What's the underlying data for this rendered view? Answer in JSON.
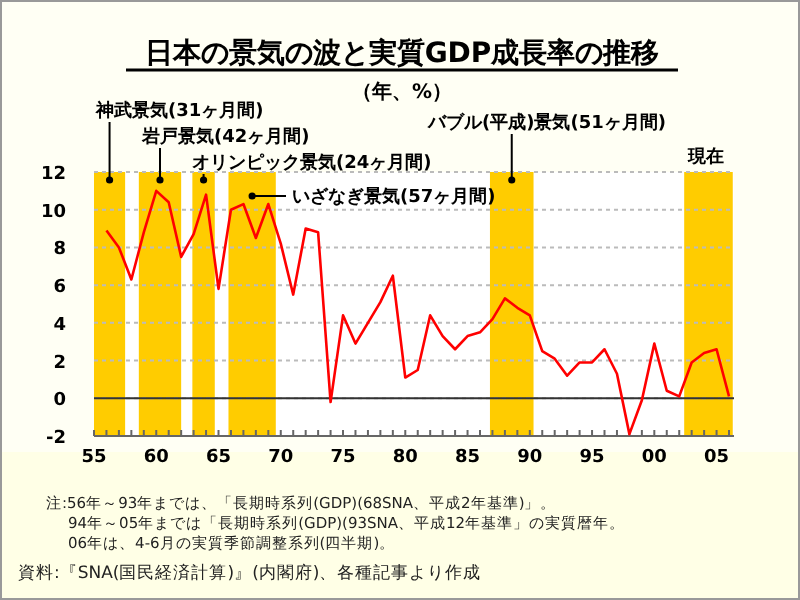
{
  "chart_data": {
    "type": "line",
    "title": "日本の景気の波と実質GDP成長率の推移",
    "subtitle": "（年、%）",
    "x": [
      1956,
      1957,
      1958,
      1959,
      1960,
      1961,
      1962,
      1963,
      1964,
      1965,
      1966,
      1967,
      1968,
      1969,
      1970,
      1971,
      1972,
      1973,
      1974,
      1975,
      1976,
      1977,
      1978,
      1979,
      1980,
      1981,
      1982,
      1983,
      1984,
      1985,
      1986,
      1987,
      1988,
      1989,
      1990,
      1991,
      1992,
      1993,
      1994,
      1995,
      1996,
      1997,
      1998,
      1999,
      2000,
      2001,
      2002,
      2003,
      2004,
      2005,
      2006
    ],
    "series": [
      {
        "color": "#ff0000",
        "values": [
          8.9,
          8.0,
          6.3,
          8.8,
          11.0,
          10.4,
          7.5,
          8.7,
          10.8,
          5.8,
          10.0,
          10.3,
          8.5,
          10.3,
          8.2,
          5.5,
          9.0,
          8.8,
          -0.2,
          4.4,
          2.9,
          4.0,
          5.1,
          6.5,
          1.1,
          1.5,
          4.4,
          3.3,
          2.6,
          3.3,
          3.5,
          4.2,
          5.3,
          4.8,
          4.4,
          2.5,
          2.1,
          1.2,
          1.9,
          1.9,
          2.6,
          1.3,
          -1.9,
          -0.1,
          2.9,
          0.4,
          0.1,
          1.9,
          2.4,
          2.6,
          0.1
        ]
      }
    ],
    "xlim": [
      1955,
      2006.4
    ],
    "xticks": [
      {
        "value": 1955,
        "label": "55"
      },
      {
        "value": 1956,
        "label": null
      },
      {
        "value": 1957,
        "label": null
      },
      {
        "value": 1958,
        "label": null
      },
      {
        "value": 1959,
        "label": null
      },
      {
        "value": 1960,
        "label": "60"
      },
      {
        "value": 1961,
        "label": null
      },
      {
        "value": 1962,
        "label": null
      },
      {
        "value": 1963,
        "label": null
      },
      {
        "value": 1964,
        "label": null
      },
      {
        "value": 1965,
        "label": "65"
      },
      {
        "value": 1966,
        "label": null
      },
      {
        "value": 1967,
        "label": null
      },
      {
        "value": 1968,
        "label": null
      },
      {
        "value": 1969,
        "label": null
      },
      {
        "value": 1970,
        "label": "70"
      },
      {
        "value": 1971,
        "label": null
      },
      {
        "value": 1972,
        "label": null
      },
      {
        "value": 1973,
        "label": null
      },
      {
        "value": 1974,
        "label": null
      },
      {
        "value": 1975,
        "label": "75"
      },
      {
        "value": 1976,
        "label": null
      },
      {
        "value": 1977,
        "label": null
      },
      {
        "value": 1978,
        "label": null
      },
      {
        "value": 1979,
        "label": null
      },
      {
        "value": 1980,
        "label": "80"
      },
      {
        "value": 1981,
        "label": null
      },
      {
        "value": 1982,
        "label": null
      },
      {
        "value": 1983,
        "label": null
      },
      {
        "value": 1984,
        "label": null
      },
      {
        "value": 1985,
        "label": "85"
      },
      {
        "value": 1986,
        "label": null
      },
      {
        "value": 1987,
        "label": null
      },
      {
        "value": 1988,
        "label": null
      },
      {
        "value": 1989,
        "label": null
      },
      {
        "value": 1990,
        "label": "90"
      },
      {
        "value": 1991,
        "label": null
      },
      {
        "value": 1992,
        "label": null
      },
      {
        "value": 1993,
        "label": null
      },
      {
        "value": 1994,
        "label": null
      },
      {
        "value": 1995,
        "label": "95"
      },
      {
        "value": 1996,
        "label": null
      },
      {
        "value": 1997,
        "label": null
      },
      {
        "value": 1998,
        "label": null
      },
      {
        "value": 1999,
        "label": null
      },
      {
        "value": 2000,
        "label": "00"
      },
      {
        "value": 2001,
        "label": null
      },
      {
        "value": 2002,
        "label": null
      },
      {
        "value": 2003,
        "label": null
      },
      {
        "value": 2004,
        "label": null
      },
      {
        "value": 2005,
        "label": "05"
      },
      {
        "value": 2006,
        "label": null
      }
    ],
    "ylim": [
      -2,
      12
    ],
    "yticks": [
      -2,
      0,
      2,
      4,
      6,
      8,
      10,
      12
    ],
    "grid": "y",
    "marker": "none",
    "line_style": "solid",
    "ref_lines": [
      {
        "axis": "y",
        "value": 0,
        "color": "#333333"
      }
    ],
    "bands": [
      {
        "axis": "x",
        "from": 1955,
        "to": 1957.5,
        "label": "神武景気(31ヶ月間)",
        "color": "#ffcc00"
      },
      {
        "axis": "x",
        "from": 1958.6,
        "to": 1962,
        "label": "岩戸景気(42ヶ月間)",
        "color": "#ffcc00"
      },
      {
        "axis": "x",
        "from": 1962.9,
        "to": 1964.7,
        "label": "オリンピック景気(24ヶ月間)",
        "color": "#ffcc00"
      },
      {
        "axis": "x",
        "from": 1965.8,
        "to": 1969.6,
        "label": "いざなぎ景気(57ヶ月間)",
        "color": "#ffcc00"
      },
      {
        "axis": "x",
        "from": 1986.8,
        "to": 1990.3,
        "label": "バブル(平成)景気(51ヶ月間)",
        "color": "#ffcc00"
      },
      {
        "axis": "x",
        "from": 2002.4,
        "to": 2006.3,
        "label": "現在",
        "color": "#ffcc00"
      }
    ],
    "annotations": [
      "注:56年～93年までは、「長期時系列(GDP)(68SNA、平成2年基準)」。",
      "94年～05年までは「長期時系列(GDP)(93SNA、平成12年基準」の実質暦年。",
      "06年は、4-6月の実質季節調整系列(四半期)。",
      "資料:『SNA(国民経済計算)』(内閣府)、各種記事より作成"
    ]
  }
}
